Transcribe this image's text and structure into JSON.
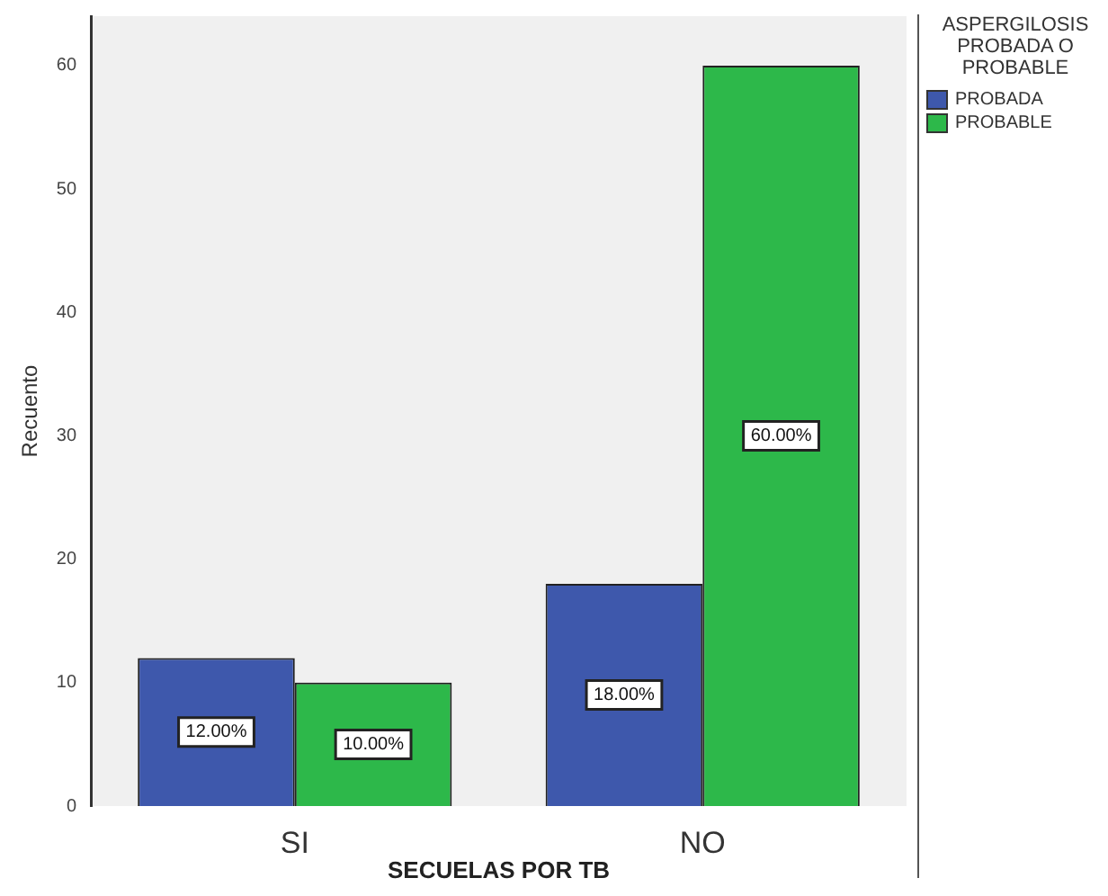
{
  "chart_data": {
    "type": "bar",
    "xlabel": "SECUELAS POR TB",
    "ylabel": "Recuento",
    "legend_title": "ASPERGILOSIS PROBADA O PROBABLE",
    "categories": [
      "SI",
      "NO"
    ],
    "series": [
      {
        "name": "PROBADA",
        "color": "#3e58ac",
        "values": [
          12,
          18
        ],
        "value_labels": [
          "12.00%",
          "18.00%"
        ]
      },
      {
        "name": "PROBABLE",
        "color": "#2db84a",
        "values": [
          10,
          60
        ],
        "value_labels": [
          "10.00%",
          "60.00%"
        ]
      }
    ],
    "ylim": [
      0,
      64
    ],
    "yticks": [
      0,
      10,
      20,
      30,
      40,
      50,
      60
    ],
    "grid": false,
    "legend": "top right"
  }
}
